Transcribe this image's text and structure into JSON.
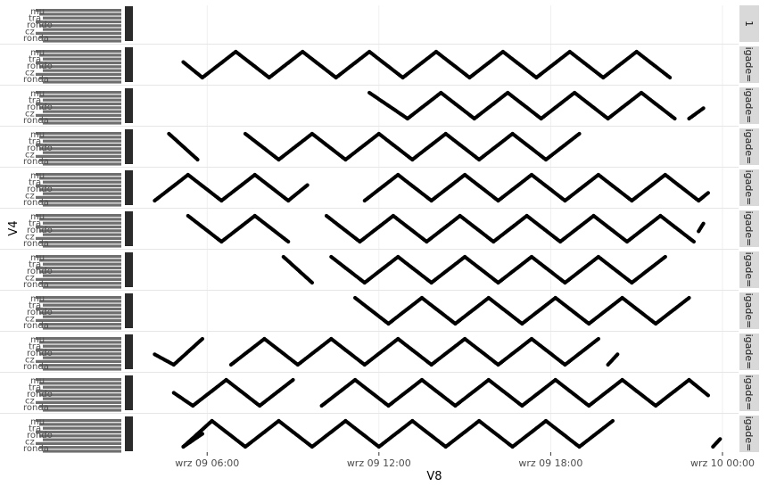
{
  "chart_data": {
    "type": "scatter",
    "xlabel": "V8",
    "ylabel": "V4",
    "x_ticks": [
      "wrz 09 06:00",
      "wrz 09 12:00",
      "wrz 09 18:00",
      "wrz 10 00:00"
    ],
    "x_range": [
      "wrz 09 03:30",
      "wrz 10 00:30"
    ],
    "y_categories_visible": [
      "mu",
      "tra",
      "rondo",
      "cz",
      "ronda"
    ],
    "facet_strips": [
      "1",
      "igade=",
      "igade=",
      "igade=",
      "igade=",
      "igade=",
      "igade=",
      "igade=",
      "igade=",
      "igade=",
      "igade="
    ],
    "grid": true,
    "point_color": "#000000",
    "strip_fill": "#d9d9d9",
    "panels": [
      {
        "strip": "1",
        "segments": []
      },
      {
        "strip": "igade=",
        "segments": [
          [
            "wrz 09 05:10",
            0.6,
            "wrz 09 05:50",
            0.0
          ],
          [
            "wrz 09 05:50",
            0.0,
            "wrz 09 07:00",
            1.0
          ],
          [
            "wrz 09 07:00",
            1.0,
            "wrz 09 08:10",
            0.0
          ],
          [
            "wrz 09 08:10",
            0.0,
            "wrz 09 09:20",
            1.0
          ],
          [
            "wrz 09 09:20",
            1.0,
            "wrz 09 10:30",
            0.0
          ],
          [
            "wrz 09 10:30",
            0.0,
            "wrz 09 11:40",
            1.0
          ],
          [
            "wrz 09 11:40",
            1.0,
            "wrz 09 12:50",
            0.0
          ],
          [
            "wrz 09 12:50",
            0.0,
            "wrz 09 14:00",
            1.0
          ],
          [
            "wrz 09 14:00",
            1.0,
            "wrz 09 15:10",
            0.0
          ],
          [
            "wrz 09 15:10",
            0.0,
            "wrz 09 16:20",
            1.0
          ],
          [
            "wrz 09 16:20",
            1.0,
            "wrz 09 17:30",
            0.0
          ],
          [
            "wrz 09 17:30",
            0.0,
            "wrz 09 18:40",
            1.0
          ],
          [
            "wrz 09 18:40",
            1.0,
            "wrz 09 19:50",
            0.0
          ],
          [
            "wrz 09 19:50",
            0.0,
            "wrz 09 21:00",
            1.0
          ],
          [
            "wrz 09 21:00",
            1.0,
            "wrz 09 22:10",
            0.0
          ]
        ]
      },
      {
        "strip": "igade=",
        "segments": [
          [
            "wrz 09 11:40",
            1.0,
            "wrz 09 13:00",
            0.0
          ],
          [
            "wrz 09 13:00",
            0.0,
            "wrz 09 14:10",
            1.0
          ],
          [
            "wrz 09 14:10",
            1.0,
            "wrz 09 15:20",
            0.0
          ],
          [
            "wrz 09 15:20",
            0.0,
            "wrz 09 16:30",
            1.0
          ],
          [
            "wrz 09 16:30",
            1.0,
            "wrz 09 17:40",
            0.0
          ],
          [
            "wrz 09 17:40",
            0.0,
            "wrz 09 18:50",
            1.0
          ],
          [
            "wrz 09 18:50",
            1.0,
            "wrz 09 20:00",
            0.0
          ],
          [
            "wrz 09 20:00",
            0.0,
            "wrz 09 21:10",
            1.0
          ],
          [
            "wrz 09 21:10",
            1.0,
            "wrz 09 22:20",
            0.0
          ],
          [
            "wrz 09 22:50",
            0.0,
            "wrz 09 23:20",
            0.4
          ]
        ]
      },
      {
        "strip": "igade=",
        "segments": [
          [
            "wrz 09 04:40",
            1.0,
            "wrz 09 05:40",
            0.0
          ],
          [
            "wrz 09 07:20",
            1.0,
            "wrz 09 08:30",
            0.0
          ],
          [
            "wrz 09 08:30",
            0.0,
            "wrz 09 09:40",
            1.0
          ],
          [
            "wrz 09 09:40",
            1.0,
            "wrz 09 10:50",
            0.0
          ],
          [
            "wrz 09 10:50",
            0.0,
            "wrz 09 12:00",
            1.0
          ],
          [
            "wrz 09 12:00",
            1.0,
            "wrz 09 13:10",
            0.0
          ],
          [
            "wrz 09 13:10",
            0.0,
            "wrz 09 14:20",
            1.0
          ],
          [
            "wrz 09 14:20",
            1.0,
            "wrz 09 15:30",
            0.0
          ],
          [
            "wrz 09 15:30",
            0.0,
            "wrz 09 16:40",
            1.0
          ],
          [
            "wrz 09 16:40",
            1.0,
            "wrz 09 17:50",
            0.0
          ],
          [
            "wrz 09 17:50",
            0.0,
            "wrz 09 19:00",
            1.0
          ]
        ]
      },
      {
        "strip": "igade=",
        "segments": [
          [
            "wrz 09 04:10",
            0.0,
            "wrz 09 05:20",
            1.0
          ],
          [
            "wrz 09 05:20",
            1.0,
            "wrz 09 06:30",
            0.0
          ],
          [
            "wrz 09 06:30",
            0.0,
            "wrz 09 07:40",
            1.0
          ],
          [
            "wrz 09 07:40",
            1.0,
            "wrz 09 08:50",
            0.0
          ],
          [
            "wrz 09 08:50",
            0.0,
            "wrz 09 09:30",
            0.6
          ],
          [
            "wrz 09 11:30",
            0.0,
            "wrz 09 12:40",
            1.0
          ],
          [
            "wrz 09 12:40",
            1.0,
            "wrz 09 13:50",
            0.0
          ],
          [
            "wrz 09 13:50",
            0.0,
            "wrz 09 15:00",
            1.0
          ],
          [
            "wrz 09 15:00",
            1.0,
            "wrz 09 16:10",
            0.0
          ],
          [
            "wrz 09 16:10",
            0.0,
            "wrz 09 17:20",
            1.0
          ],
          [
            "wrz 09 17:20",
            1.0,
            "wrz 09 18:30",
            0.0
          ],
          [
            "wrz 09 18:30",
            0.0,
            "wrz 09 19:40",
            1.0
          ],
          [
            "wrz 09 19:40",
            1.0,
            "wrz 09 20:50",
            0.0
          ],
          [
            "wrz 09 20:50",
            0.0,
            "wrz 09 22:00",
            1.0
          ],
          [
            "wrz 09 22:00",
            1.0,
            "wrz 09 23:10",
            0.0
          ],
          [
            "wrz 09 23:10",
            0.0,
            "wrz 09 23:30",
            0.3
          ]
        ]
      },
      {
        "strip": "igade=",
        "segments": [
          [
            "wrz 09 05:20",
            1.0,
            "wrz 09 06:30",
            0.0
          ],
          [
            "wrz 09 06:30",
            0.0,
            "wrz 09 07:40",
            1.0
          ],
          [
            "wrz 09 07:40",
            1.0,
            "wrz 09 08:50",
            0.0
          ],
          [
            "wrz 09 10:10",
            1.0,
            "wrz 09 11:20",
            0.0
          ],
          [
            "wrz 09 11:20",
            0.0,
            "wrz 09 12:30",
            1.0
          ],
          [
            "wrz 09 12:30",
            1.0,
            "wrz 09 13:40",
            0.0
          ],
          [
            "wrz 09 13:40",
            0.0,
            "wrz 09 14:50",
            1.0
          ],
          [
            "wrz 09 14:50",
            1.0,
            "wrz 09 16:00",
            0.0
          ],
          [
            "wrz 09 16:00",
            0.0,
            "wrz 09 17:10",
            1.0
          ],
          [
            "wrz 09 17:10",
            1.0,
            "wrz 09 18:20",
            0.0
          ],
          [
            "wrz 09 18:20",
            0.0,
            "wrz 09 19:30",
            1.0
          ],
          [
            "wrz 09 19:30",
            1.0,
            "wrz 09 20:40",
            0.0
          ],
          [
            "wrz 09 20:40",
            0.0,
            "wrz 09 21:50",
            1.0
          ],
          [
            "wrz 09 21:50",
            1.0,
            "wrz 09 23:00",
            0.0
          ],
          [
            "wrz 09 23:10",
            0.4,
            "wrz 09 23:20",
            0.7
          ]
        ]
      },
      {
        "strip": "igade=",
        "segments": [
          [
            "wrz 09 08:40",
            1.0,
            "wrz 09 09:40",
            0.0
          ],
          [
            "wrz 09 10:20",
            1.0,
            "wrz 09 11:30",
            0.0
          ],
          [
            "wrz 09 11:30",
            0.0,
            "wrz 09 12:40",
            1.0
          ],
          [
            "wrz 09 12:40",
            1.0,
            "wrz 09 13:50",
            0.0
          ],
          [
            "wrz 09 13:50",
            0.0,
            "wrz 09 15:00",
            1.0
          ],
          [
            "wrz 09 15:00",
            1.0,
            "wrz 09 16:10",
            0.0
          ],
          [
            "wrz 09 16:10",
            0.0,
            "wrz 09 17:20",
            1.0
          ],
          [
            "wrz 09 17:20",
            1.0,
            "wrz 09 18:30",
            0.0
          ],
          [
            "wrz 09 18:30",
            0.0,
            "wrz 09 19:40",
            1.0
          ],
          [
            "wrz 09 19:40",
            1.0,
            "wrz 09 20:50",
            0.0
          ],
          [
            "wrz 09 20:50",
            0.0,
            "wrz 09 22:00",
            1.0
          ]
        ]
      },
      {
        "strip": "igade=",
        "segments": [
          [
            "wrz 09 11:10",
            1.0,
            "wrz 09 12:20",
            0.0
          ],
          [
            "wrz 09 12:20",
            0.0,
            "wrz 09 13:30",
            1.0
          ],
          [
            "wrz 09 13:30",
            1.0,
            "wrz 09 14:40",
            0.0
          ],
          [
            "wrz 09 14:40",
            0.0,
            "wrz 09 15:50",
            1.0
          ],
          [
            "wrz 09 15:50",
            1.0,
            "wrz 09 17:00",
            0.0
          ],
          [
            "wrz 09 17:00",
            0.0,
            "wrz 09 18:10",
            1.0
          ],
          [
            "wrz 09 18:10",
            1.0,
            "wrz 09 19:20",
            0.0
          ],
          [
            "wrz 09 19:20",
            0.0,
            "wrz 09 20:30",
            1.0
          ],
          [
            "wrz 09 20:30",
            1.0,
            "wrz 09 21:40",
            0.0
          ],
          [
            "wrz 09 21:40",
            0.0,
            "wrz 09 22:50",
            1.0
          ]
        ]
      },
      {
        "strip": "igade=",
        "segments": [
          [
            "wrz 09 04:10",
            0.4,
            "wrz 09 04:50",
            0.0
          ],
          [
            "wrz 09 04:50",
            0.0,
            "wrz 09 05:50",
            1.0
          ],
          [
            "wrz 09 06:50",
            0.0,
            "wrz 09 08:00",
            1.0
          ],
          [
            "wrz 09 08:00",
            1.0,
            "wrz 09 09:10",
            0.0
          ],
          [
            "wrz 09 09:10",
            0.0,
            "wrz 09 10:20",
            1.0
          ],
          [
            "wrz 09 10:20",
            1.0,
            "wrz 09 11:30",
            0.0
          ],
          [
            "wrz 09 11:30",
            0.0,
            "wrz 09 12:40",
            1.0
          ],
          [
            "wrz 09 12:40",
            1.0,
            "wrz 09 13:50",
            0.0
          ],
          [
            "wrz 09 13:50",
            0.0,
            "wrz 09 15:00",
            1.0
          ],
          [
            "wrz 09 15:00",
            1.0,
            "wrz 09 16:10",
            0.0
          ],
          [
            "wrz 09 16:10",
            0.0,
            "wrz 09 17:20",
            1.0
          ],
          [
            "wrz 09 17:20",
            1.0,
            "wrz 09 18:30",
            0.0
          ],
          [
            "wrz 09 18:30",
            0.0,
            "wrz 09 19:40",
            1.0
          ],
          [
            "wrz 09 20:00",
            0.0,
            "wrz 09 20:20",
            0.4
          ]
        ]
      },
      {
        "strip": "igade=",
        "segments": [
          [
            "wrz 09 04:50",
            0.5,
            "wrz 09 05:30",
            0.0
          ],
          [
            "wrz 09 05:30",
            0.0,
            "wrz 09 06:40",
            1.0
          ],
          [
            "wrz 09 06:40",
            1.0,
            "wrz 09 07:50",
            0.0
          ],
          [
            "wrz 09 07:50",
            0.0,
            "wrz 09 09:00",
            1.0
          ],
          [
            "wrz 09 10:00",
            0.0,
            "wrz 09 11:10",
            1.0
          ],
          [
            "wrz 09 11:10",
            1.0,
            "wrz 09 12:20",
            0.0
          ],
          [
            "wrz 09 12:20",
            0.0,
            "wrz 09 13:30",
            1.0
          ],
          [
            "wrz 09 13:30",
            1.0,
            "wrz 09 14:40",
            0.0
          ],
          [
            "wrz 09 14:40",
            0.0,
            "wrz 09 15:50",
            1.0
          ],
          [
            "wrz 09 15:50",
            1.0,
            "wrz 09 17:00",
            0.0
          ],
          [
            "wrz 09 17:00",
            0.0,
            "wrz 09 18:10",
            1.0
          ],
          [
            "wrz 09 18:10",
            1.0,
            "wrz 09 19:20",
            0.0
          ],
          [
            "wrz 09 19:20",
            0.0,
            "wrz 09 20:30",
            1.0
          ],
          [
            "wrz 09 20:30",
            1.0,
            "wrz 09 21:40",
            0.0
          ],
          [
            "wrz 09 21:40",
            0.0,
            "wrz 09 22:50",
            1.0
          ],
          [
            "wrz 09 22:50",
            1.0,
            "wrz 09 23:30",
            0.4
          ]
        ]
      },
      {
        "strip": "igade=",
        "segments": [
          [
            "wrz 09 05:10",
            0.0,
            "wrz 09 05:50",
            0.5
          ],
          [
            "wrz 09 05:10",
            0.0,
            "wrz 09 06:10",
            1.0
          ],
          [
            "wrz 09 06:10",
            1.0,
            "wrz 09 07:20",
            0.0
          ],
          [
            "wrz 09 07:20",
            0.0,
            "wrz 09 08:30",
            1.0
          ],
          [
            "wrz 09 08:30",
            1.0,
            "wrz 09 09:40",
            0.0
          ],
          [
            "wrz 09 09:40",
            0.0,
            "wrz 09 10:50",
            1.0
          ],
          [
            "wrz 09 10:50",
            1.0,
            "wrz 09 12:00",
            0.0
          ],
          [
            "wrz 09 12:00",
            0.0,
            "wrz 09 13:10",
            1.0
          ],
          [
            "wrz 09 13:10",
            1.0,
            "wrz 09 14:20",
            0.0
          ],
          [
            "wrz 09 14:20",
            0.0,
            "wrz 09 15:30",
            1.0
          ],
          [
            "wrz 09 15:30",
            1.0,
            "wrz 09 16:40",
            0.0
          ],
          [
            "wrz 09 16:40",
            0.0,
            "wrz 09 17:50",
            1.0
          ],
          [
            "wrz 09 17:50",
            1.0,
            "wrz 09 19:00",
            0.0
          ],
          [
            "wrz 09 19:00",
            0.0,
            "wrz 09 20:10",
            1.0
          ],
          [
            "wrz 09 23:40",
            0.0,
            "wrz 09 23:55",
            0.3
          ]
        ]
      }
    ]
  }
}
